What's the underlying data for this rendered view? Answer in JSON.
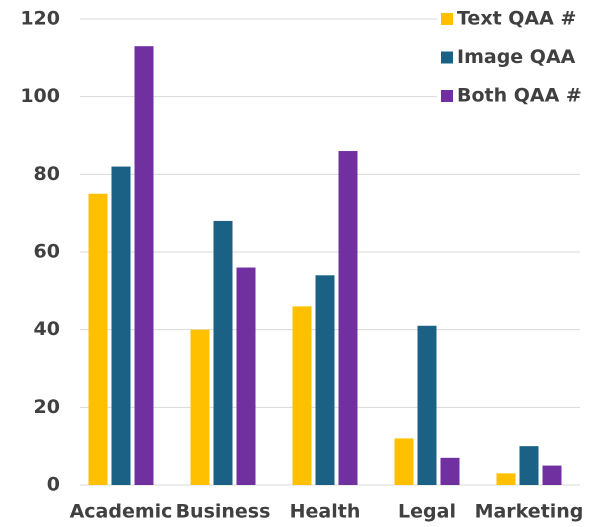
{
  "chart_data": {
    "type": "bar",
    "categories": [
      "Academic",
      "Business",
      "Health",
      "Legal",
      "Marketing"
    ],
    "series": [
      {
        "name": "Text QAA #",
        "color": "#ffc000",
        "values": [
          75,
          40,
          46,
          12,
          3
        ]
      },
      {
        "name": "Image QAA",
        "color": "#1a6185",
        "values": [
          82,
          68,
          54,
          41,
          10
        ]
      },
      {
        "name": "Both QAA #",
        "color": "#7030a0",
        "values": [
          113,
          56,
          86,
          7,
          5
        ]
      }
    ],
    "ylim": [
      0,
      120
    ],
    "yticks": [
      0,
      20,
      40,
      60,
      80,
      100,
      120
    ],
    "grid": true,
    "legend": "top-right"
  }
}
